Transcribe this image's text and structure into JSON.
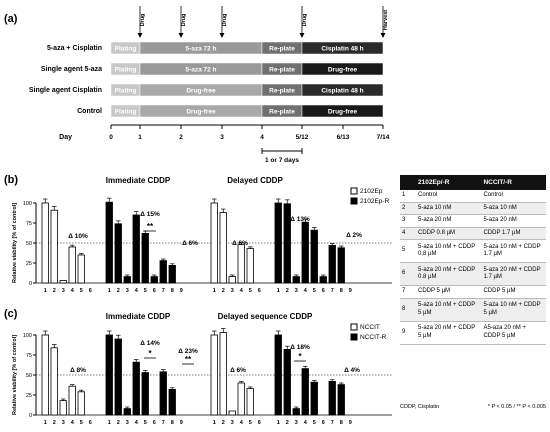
{
  "panels": {
    "a": "(a)",
    "b": "(b)",
    "c": "(c)"
  },
  "timeline": {
    "markers": [
      "Drug",
      "Drug",
      "Drug",
      "Drug",
      "Harvest"
    ],
    "rows": [
      {
        "label": "5-aza + Cisplatin",
        "segments": [
          "Plating",
          "5-aza 72 h",
          "Re-plate",
          "Cisplatin 48 h"
        ]
      },
      {
        "label": "Single agent 5-aza",
        "segments": [
          "Plating",
          "5-aza 72 h",
          "Re-plate",
          "Drug-free"
        ]
      },
      {
        "label": "Single agent Cisplatin",
        "segments": [
          "Plating",
          "Drug-free",
          "Re-plate",
          "Cisplatin 48 h"
        ]
      },
      {
        "label": "Control",
        "segments": [
          "Plating",
          "Drug-free",
          "Re-plate",
          "Drug-free"
        ]
      }
    ],
    "day_label": "Day",
    "days": [
      "0",
      "1",
      "2",
      "3",
      "4",
      "5/12",
      "6/13",
      "7/14"
    ],
    "interval_label": "1 or 7 days"
  },
  "chart_data": [
    {
      "type": "bar",
      "panel": "b",
      "ylabel": "Relative viability [% of control]",
      "ylim": [
        0,
        100
      ],
      "yticks": [
        "0",
        "25",
        "50",
        "75",
        "100"
      ],
      "threshold": 50,
      "groups": [
        {
          "title": "Immediate CDDP"
        },
        {
          "title": "Delayed CDDP"
        }
      ],
      "legend": [
        "2102Ep",
        "2102Ep-R"
      ],
      "series": [
        {
          "name": "2102Ep",
          "group": 0,
          "x": [
            "1",
            "2",
            "3",
            "4",
            "5",
            "6"
          ],
          "values": [
            100,
            91,
            3,
            45,
            35,
            0
          ]
        },
        {
          "name": "2102Ep-R",
          "group": 0,
          "x": [
            "1",
            "2",
            "3",
            "4",
            "5",
            "6",
            "7",
            "8",
            "9"
          ],
          "values": [
            101,
            74,
            8,
            85,
            62,
            8,
            28,
            22,
            0
          ]
        },
        {
          "name": "2102Ep",
          "group": 1,
          "x": [
            "1",
            "2",
            "3",
            "4",
            "5",
            "6"
          ],
          "values": [
            100,
            88,
            8,
            48,
            43,
            0
          ]
        },
        {
          "name": "2102Ep-R",
          "group": 1,
          "x": [
            "1",
            "2",
            "3",
            "4",
            "5",
            "6",
            "7",
            "8",
            "9"
          ],
          "values": [
            100,
            99,
            8,
            76,
            66,
            8,
            47,
            44,
            0
          ]
        }
      ],
      "annotations": [
        "Δ 10%",
        "Δ 15%",
        "**",
        "Δ 6%",
        "Δ 6%",
        "Δ 13%",
        "Δ 2%"
      ]
    },
    {
      "type": "bar",
      "panel": "c",
      "ylabel": "Relative viability [% of control]",
      "ylim": [
        0,
        100
      ],
      "yticks": [
        "0",
        "25",
        "50",
        "75",
        "100"
      ],
      "threshold": 50,
      "groups": [
        {
          "title": "Immediate CDDP"
        },
        {
          "title": "Delayed sequence CDDP"
        }
      ],
      "legend": [
        "NCCIT",
        "NCCIT-R"
      ],
      "series": [
        {
          "name": "NCCIT",
          "group": 0,
          "x": [
            "1",
            "2",
            "3",
            "4",
            "5",
            "6"
          ],
          "values": [
            100,
            84,
            18,
            36,
            29,
            0
          ]
        },
        {
          "name": "NCCIT-R",
          "group": 0,
          "x": [
            "1",
            "2",
            "3",
            "4",
            "5",
            "6",
            "7",
            "8",
            "9"
          ],
          "values": [
            100,
            95,
            8,
            66,
            53,
            0,
            54,
            32,
            0
          ]
        },
        {
          "name": "NCCIT",
          "group": 1,
          "x": [
            "1",
            "2",
            "3",
            "4",
            "5",
            "6"
          ],
          "values": [
            100,
            103,
            5,
            40,
            33,
            0
          ]
        },
        {
          "name": "NCCIT-R",
          "group": 1,
          "x": [
            "1",
            "2",
            "3",
            "4",
            "5",
            "6",
            "7",
            "8",
            "9"
          ],
          "values": [
            100,
            82,
            8,
            58,
            41,
            0,
            42,
            38,
            0
          ]
        }
      ],
      "annotations": [
        "Δ 8%",
        "Δ 14%",
        "*",
        "Δ 23%",
        "**",
        "Δ 6%",
        "Δ 18%",
        "*",
        "Δ 4%"
      ]
    }
  ],
  "table": {
    "headers": [
      "2102Ep/-R",
      "NCCIT/-R"
    ],
    "rows": [
      [
        "1",
        "Control",
        "Control"
      ],
      [
        "2",
        "5-aza 10 nM",
        "5-aza 10 nM"
      ],
      [
        "3",
        "5-aza 20 nM",
        "5-aza 20 nM"
      ],
      [
        "4",
        "CDDP 0.8 µM",
        "CDDP 1.7 µM"
      ],
      [
        "5",
        "5-aza 10 nM + CDDP 0.8 µM",
        "5-aza 10 nM + CDDP 1.7 µM"
      ],
      [
        "6",
        "5-aza 20 nM + CDDP 0.8 µM",
        "5-aza 20 nM + CDDP 1.7 µM"
      ],
      [
        "7",
        "CDDP 5 µM",
        "CDDP 5 µM"
      ],
      [
        "8",
        "5-aza 10 nM + CDDP 5 µM",
        "5-aza 10 nM + CDDP 5 µM"
      ],
      [
        "9",
        "5-aza 20 nM + CDDP 5 µM",
        "A5-aza 20 nM + CDDP 5 µM"
      ]
    ],
    "footnote_left": "CDDP, Cisplatin",
    "footnote_right": "* P < 0.05 / ** P < 0.005"
  },
  "colors": {
    "plating": "#c8c8c8",
    "drugfree": "#a9a9a9",
    "replate": "#707070",
    "cisplatin": "#2a2a2a"
  }
}
